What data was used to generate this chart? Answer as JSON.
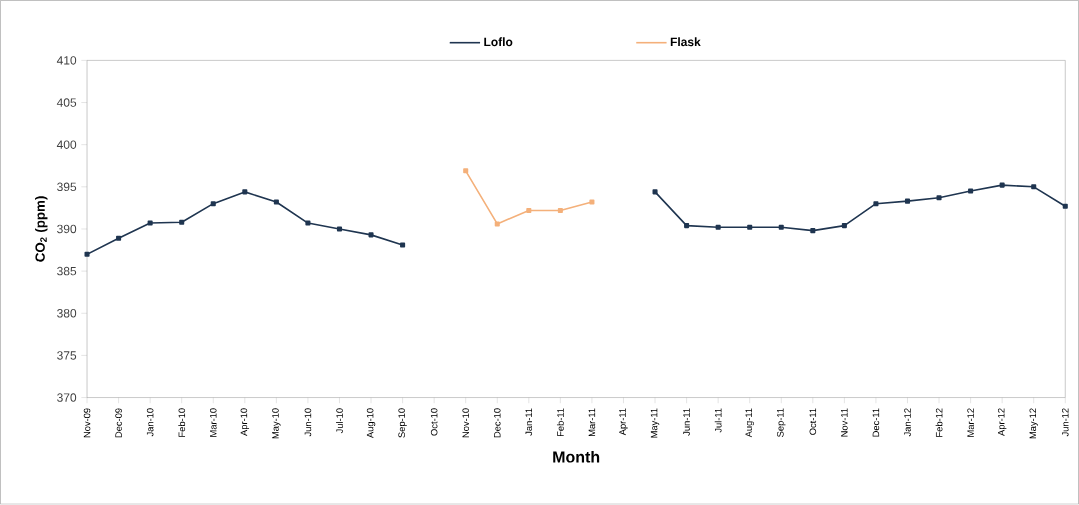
{
  "chart_data": {
    "type": "line",
    "xlabel": "Month",
    "ylabel": "CO$_{2}$ (ppm)",
    "categories": [
      "Nov-09",
      "Dec-09",
      "Jan-10",
      "Feb-10",
      "Mar-10",
      "Apr-10",
      "May-10",
      "Jun-10",
      "Jul-10",
      "Aug-10",
      "Sep-10",
      "Oct-10",
      "Nov-10",
      "Dec-10",
      "Jan-11",
      "Feb-11",
      "Mar-11",
      "Apr-11",
      "May-11",
      "Jun-11",
      "Jul-11",
      "Aug-11",
      "Sep-11",
      "Oct-11",
      "Nov-11",
      "Dec-11",
      "Jan-12",
      "Feb-12",
      "Mar-12",
      "Apr-12",
      "May-12",
      "Jun-12"
    ],
    "series": [
      {
        "name": "Loflo",
        "color": "#1f3550",
        "values": [
          387.0,
          388.9,
          390.7,
          390.8,
          393.0,
          394.4,
          393.2,
          390.7,
          390.0,
          389.3,
          388.1,
          null,
          null,
          null,
          null,
          null,
          null,
          null,
          394.4,
          390.4,
          390.2,
          390.2,
          390.2,
          389.8,
          390.4,
          393.0,
          393.3,
          393.7,
          394.5,
          395.2,
          395.0,
          392.7
        ]
      },
      {
        "name": "Flask",
        "color": "#f4b07a",
        "values": [
          null,
          null,
          null,
          null,
          null,
          null,
          null,
          null,
          null,
          null,
          null,
          null,
          396.9,
          390.6,
          392.2,
          392.2,
          393.2,
          null,
          null,
          null,
          null,
          null,
          null,
          null,
          null,
          null,
          null,
          null,
          null,
          null,
          null,
          null
        ]
      }
    ],
    "ylim": [
      370,
      410
    ],
    "yticks": [
      370,
      375,
      380,
      385,
      390,
      395,
      400,
      405,
      410
    ],
    "grid": false,
    "legend": "top",
    "marker": "square",
    "line_style": "solid"
  }
}
